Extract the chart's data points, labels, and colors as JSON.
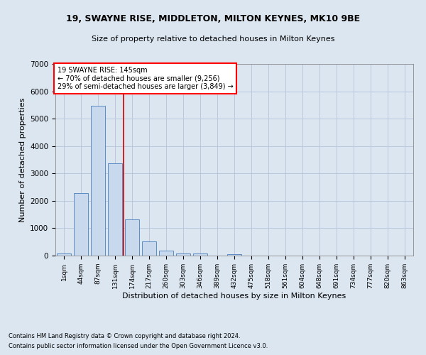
{
  "title": "19, SWAYNE RISE, MIDDLETON, MILTON KEYNES, MK10 9BE",
  "subtitle": "Size of property relative to detached houses in Milton Keynes",
  "xlabel": "Distribution of detached houses by size in Milton Keynes",
  "ylabel": "Number of detached properties",
  "footnote1": "Contains HM Land Registry data © Crown copyright and database right 2024.",
  "footnote2": "Contains public sector information licensed under the Open Government Licence v3.0.",
  "annotation_line1": "19 SWAYNE RISE: 145sqm",
  "annotation_line2": "← 70% of detached houses are smaller (9,256)",
  "annotation_line3": "29% of semi-detached houses are larger (3,849) →",
  "bar_color": "#c9d9ed",
  "bar_edge_color": "#5b8cc4",
  "grid_color": "#b8c8dc",
  "bg_color": "#dce6f1",
  "vline_color": "#cc0000",
  "vline_x": 3.5,
  "categories": [
    "1sqm",
    "44sqm",
    "87sqm",
    "131sqm",
    "174sqm",
    "217sqm",
    "260sqm",
    "303sqm",
    "346sqm",
    "389sqm",
    "432sqm",
    "475sqm",
    "518sqm",
    "561sqm",
    "604sqm",
    "648sqm",
    "691sqm",
    "734sqm",
    "777sqm",
    "820sqm",
    "863sqm"
  ],
  "values": [
    70,
    2280,
    5480,
    3380,
    1310,
    510,
    175,
    90,
    65,
    0,
    55,
    0,
    0,
    0,
    0,
    0,
    0,
    0,
    0,
    0,
    0
  ],
  "ylim": [
    0,
    7000
  ],
  "yticks": [
    0,
    1000,
    2000,
    3000,
    4000,
    5000,
    6000,
    7000
  ]
}
